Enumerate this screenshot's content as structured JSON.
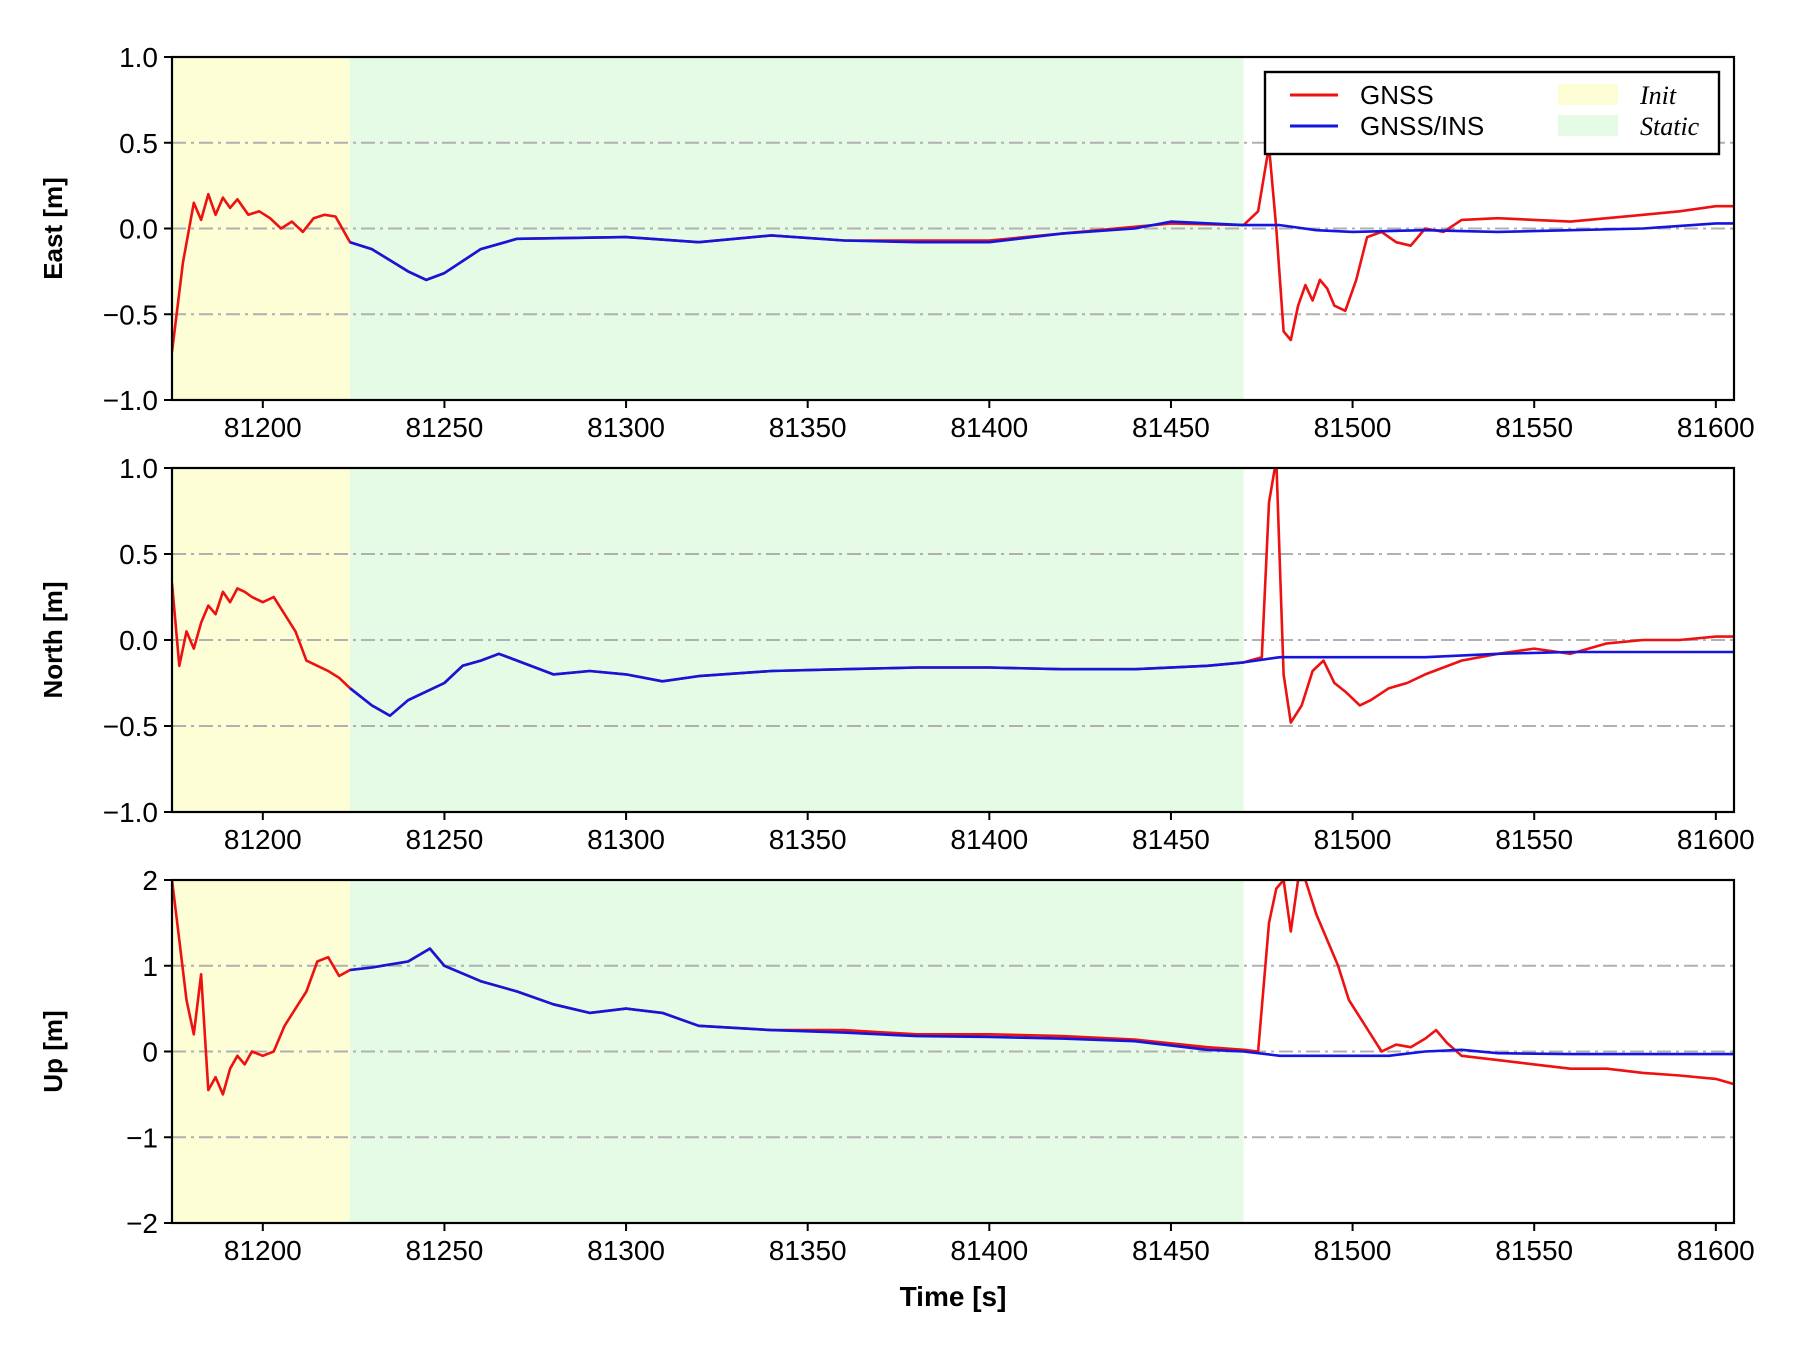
{
  "colors": {
    "gnss": "#ee1111",
    "gnss_ins": "#1515dd",
    "init_region": "#fdfdd6",
    "static_region": "#e6fbe6",
    "grid": "#b0b0b0",
    "axis": "#000000"
  },
  "xlabel": "Time [s]",
  "legend": {
    "placement": "top-right",
    "entries": [
      {
        "label": "GNSS",
        "type": "line",
        "color": "#ee1111"
      },
      {
        "label": "GNSS/INS",
        "type": "line",
        "color": "#1515dd"
      },
      {
        "label": "Init",
        "type": "patch",
        "color": "#fdfdd6"
      },
      {
        "label": "Static",
        "type": "patch",
        "color": "#e6fbe6"
      }
    ]
  },
  "chart_data": [
    {
      "type": "line",
      "ylabel": "East [m]",
      "xlim": [
        81175,
        81605
      ],
      "ylim": [
        -1.0,
        1.0
      ],
      "xticks": [
        81200,
        81250,
        81300,
        81350,
        81400,
        81450,
        81500,
        81550,
        81600
      ],
      "yticks": [
        -1.0,
        -0.5,
        0.0,
        0.5,
        1.0
      ],
      "ytick_labels": [
        "−1.0",
        "−0.5",
        "0.0",
        "0.5",
        "1.0"
      ],
      "grid": "horizontal dash-dot",
      "regions": [
        {
          "name": "Init",
          "x": [
            81175,
            81224
          ]
        },
        {
          "name": "Static",
          "x": [
            81224,
            81470
          ]
        }
      ],
      "series": [
        {
          "name": "GNSS",
          "x": [
            81175,
            81178,
            81181,
            81183,
            81185,
            81187,
            81189,
            81191,
            81193,
            81196,
            81199,
            81202,
            81205,
            81208,
            81211,
            81214,
            81217,
            81220,
            81224,
            81230,
            81240,
            81245,
            81250,
            81260,
            81270,
            81300,
            81320,
            81340,
            81360,
            81380,
            81400,
            81420,
            81440,
            81450,
            81470,
            81474,
            81477,
            81479,
            81481,
            81483,
            81485,
            81487,
            81489,
            81491,
            81493,
            81495,
            81498,
            81501,
            81504,
            81508,
            81512,
            81516,
            81520,
            81525,
            81530,
            81540,
            81550,
            81560,
            81570,
            81580,
            81590,
            81600,
            81605
          ],
          "y": [
            -0.72,
            -0.2,
            0.15,
            0.05,
            0.2,
            0.08,
            0.18,
            0.12,
            0.17,
            0.08,
            0.1,
            0.06,
            0.0,
            0.04,
            -0.02,
            0.06,
            0.08,
            0.07,
            -0.08,
            -0.12,
            -0.25,
            -0.3,
            -0.26,
            -0.12,
            -0.06,
            -0.05,
            -0.08,
            -0.04,
            -0.07,
            -0.07,
            -0.07,
            -0.03,
            0.01,
            0.03,
            0.02,
            0.1,
            0.48,
            0.0,
            -0.6,
            -0.65,
            -0.45,
            -0.33,
            -0.42,
            -0.3,
            -0.35,
            -0.45,
            -0.48,
            -0.3,
            -0.05,
            -0.02,
            -0.08,
            -0.1,
            0.0,
            -0.02,
            0.05,
            0.06,
            0.05,
            0.04,
            0.06,
            0.08,
            0.1,
            0.13,
            0.13
          ]
        },
        {
          "name": "GNSS/INS",
          "x": [
            81224,
            81230,
            81240,
            81245,
            81250,
            81260,
            81270,
            81300,
            81320,
            81340,
            81360,
            81380,
            81400,
            81420,
            81440,
            81450,
            81470,
            81480,
            81490,
            81500,
            81520,
            81540,
            81560,
            81580,
            81600,
            81605
          ],
          "y": [
            -0.08,
            -0.12,
            -0.25,
            -0.3,
            -0.26,
            -0.12,
            -0.06,
            -0.05,
            -0.08,
            -0.04,
            -0.07,
            -0.08,
            -0.08,
            -0.03,
            0.0,
            0.04,
            0.02,
            0.02,
            -0.01,
            -0.02,
            -0.01,
            -0.02,
            -0.01,
            0.0,
            0.03,
            0.03
          ]
        }
      ]
    },
    {
      "type": "line",
      "ylabel": "North [m]",
      "xlim": [
        81175,
        81605
      ],
      "ylim": [
        -1.0,
        1.0
      ],
      "xticks": [
        81200,
        81250,
        81300,
        81350,
        81400,
        81450,
        81500,
        81550,
        81600
      ],
      "yticks": [
        -1.0,
        -0.5,
        0.0,
        0.5,
        1.0
      ],
      "ytick_labels": [
        "−1.0",
        "−0.5",
        "0.0",
        "0.5",
        "1.0"
      ],
      "grid": "horizontal dash-dot",
      "regions": [
        {
          "name": "Init",
          "x": [
            81175,
            81224
          ]
        },
        {
          "name": "Static",
          "x": [
            81224,
            81470
          ]
        }
      ],
      "series": [
        {
          "name": "GNSS",
          "x": [
            81175,
            81177,
            81179,
            81181,
            81183,
            81185,
            81187,
            81189,
            81191,
            81193,
            81195,
            81197,
            81200,
            81203,
            81206,
            81209,
            81212,
            81215,
            81218,
            81221,
            81224,
            81230,
            81235,
            81240,
            81245,
            81250,
            81255,
            81260,
            81265,
            81270,
            81280,
            81290,
            81300,
            81310,
            81320,
            81340,
            81360,
            81380,
            81400,
            81420,
            81440,
            81460,
            81470,
            81475,
            81477,
            81479,
            81481,
            81483,
            81486,
            81489,
            81492,
            81495,
            81498,
            81502,
            81505,
            81510,
            81515,
            81520,
            81530,
            81540,
            81550,
            81560,
            81570,
            81580,
            81590,
            81600,
            81605
          ],
          "y": [
            0.33,
            -0.15,
            0.05,
            -0.05,
            0.1,
            0.2,
            0.15,
            0.28,
            0.22,
            0.3,
            0.28,
            0.25,
            0.22,
            0.25,
            0.15,
            0.05,
            -0.12,
            -0.15,
            -0.18,
            -0.22,
            -0.28,
            -0.38,
            -0.44,
            -0.35,
            -0.3,
            -0.25,
            -0.15,
            -0.12,
            -0.08,
            -0.12,
            -0.2,
            -0.18,
            -0.2,
            -0.24,
            -0.21,
            -0.18,
            -0.17,
            -0.16,
            -0.16,
            -0.17,
            -0.17,
            -0.15,
            -0.13,
            -0.1,
            0.8,
            1.05,
            -0.2,
            -0.48,
            -0.38,
            -0.18,
            -0.12,
            -0.25,
            -0.3,
            -0.38,
            -0.35,
            -0.28,
            -0.25,
            -0.2,
            -0.12,
            -0.08,
            -0.05,
            -0.08,
            -0.02,
            0.0,
            0.0,
            0.02,
            0.02
          ]
        },
        {
          "name": "GNSS/INS",
          "x": [
            81224,
            81230,
            81235,
            81240,
            81245,
            81250,
            81255,
            81260,
            81265,
            81270,
            81280,
            81290,
            81300,
            81310,
            81320,
            81340,
            81360,
            81380,
            81400,
            81420,
            81440,
            81460,
            81470,
            81480,
            81490,
            81500,
            81520,
            81540,
            81560,
            81580,
            81600,
            81605
          ],
          "y": [
            -0.28,
            -0.38,
            -0.44,
            -0.35,
            -0.3,
            -0.25,
            -0.15,
            -0.12,
            -0.08,
            -0.12,
            -0.2,
            -0.18,
            -0.2,
            -0.24,
            -0.21,
            -0.18,
            -0.17,
            -0.16,
            -0.16,
            -0.17,
            -0.17,
            -0.15,
            -0.13,
            -0.1,
            -0.1,
            -0.1,
            -0.1,
            -0.08,
            -0.07,
            -0.07,
            -0.07,
            -0.07
          ]
        }
      ]
    },
    {
      "type": "line",
      "ylabel": "Up [m]",
      "xlabel": "Time [s]",
      "xlim": [
        81175,
        81605
      ],
      "ylim": [
        -2,
        2
      ],
      "xticks": [
        81200,
        81250,
        81300,
        81350,
        81400,
        81450,
        81500,
        81550,
        81600
      ],
      "yticks": [
        -2,
        -1,
        0,
        1,
        2
      ],
      "ytick_labels": [
        "−2",
        "−1",
        "0",
        "1",
        "2"
      ],
      "grid": "horizontal dash-dot",
      "regions": [
        {
          "name": "Init",
          "x": [
            81175,
            81224
          ]
        },
        {
          "name": "Static",
          "x": [
            81224,
            81470
          ]
        }
      ],
      "series": [
        {
          "name": "GNSS",
          "x": [
            81175,
            81177,
            81179,
            81181,
            81183,
            81185,
            81187,
            81189,
            81191,
            81193,
            81195,
            81197,
            81200,
            81203,
            81206,
            81209,
            81212,
            81215,
            81218,
            81221,
            81224,
            81230,
            81240,
            81246,
            81250,
            81260,
            81270,
            81280,
            81290,
            81300,
            81310,
            81320,
            81340,
            81360,
            81380,
            81400,
            81420,
            81440,
            81460,
            81470,
            81474,
            81477,
            81479,
            81481,
            81483,
            81485,
            81487,
            81490,
            81493,
            81496,
            81499,
            81502,
            81505,
            81508,
            81512,
            81516,
            81520,
            81523,
            81526,
            81530,
            81540,
            81550,
            81560,
            81570,
            81580,
            81590,
            81600,
            81605
          ],
          "y": [
            2.0,
            1.3,
            0.6,
            0.2,
            0.9,
            -0.45,
            -0.3,
            -0.5,
            -0.2,
            -0.05,
            -0.15,
            0.0,
            -0.05,
            0.0,
            0.3,
            0.5,
            0.7,
            1.05,
            1.1,
            0.88,
            0.95,
            0.98,
            1.05,
            1.2,
            1.0,
            0.82,
            0.7,
            0.55,
            0.45,
            0.5,
            0.45,
            0.3,
            0.25,
            0.25,
            0.2,
            0.2,
            0.18,
            0.14,
            0.05,
            0.02,
            0.0,
            1.5,
            1.9,
            2.0,
            1.4,
            2.0,
            2.0,
            1.6,
            1.3,
            1.0,
            0.6,
            0.4,
            0.2,
            0.0,
            0.08,
            0.05,
            0.15,
            0.25,
            0.1,
            -0.05,
            -0.1,
            -0.15,
            -0.2,
            -0.2,
            -0.25,
            -0.28,
            -0.32,
            -0.38
          ]
        },
        {
          "name": "GNSS/INS",
          "x": [
            81224,
            81230,
            81240,
            81246,
            81250,
            81260,
            81270,
            81280,
            81290,
            81300,
            81310,
            81320,
            81340,
            81360,
            81380,
            81400,
            81420,
            81440,
            81460,
            81470,
            81480,
            81490,
            81500,
            81510,
            81520,
            81530,
            81540,
            81560,
            81580,
            81600,
            81605
          ],
          "y": [
            0.95,
            0.98,
            1.05,
            1.2,
            1.0,
            0.82,
            0.7,
            0.55,
            0.45,
            0.5,
            0.45,
            0.3,
            0.25,
            0.22,
            0.18,
            0.17,
            0.15,
            0.12,
            0.02,
            0.0,
            -0.05,
            -0.05,
            -0.05,
            -0.05,
            0.0,
            0.02,
            -0.02,
            -0.03,
            -0.03,
            -0.03,
            -0.03
          ]
        }
      ]
    }
  ]
}
